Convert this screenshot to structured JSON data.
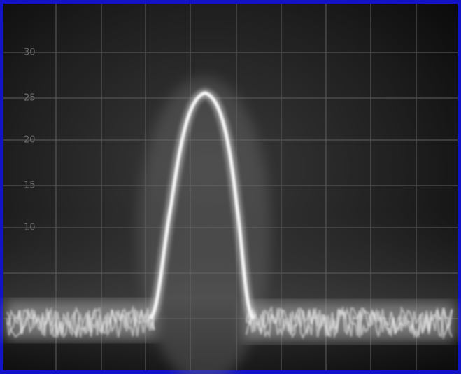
{
  "screen": {
    "scale_labels": [
      "30",
      "25",
      "20",
      "15",
      "10"
    ]
  }
}
